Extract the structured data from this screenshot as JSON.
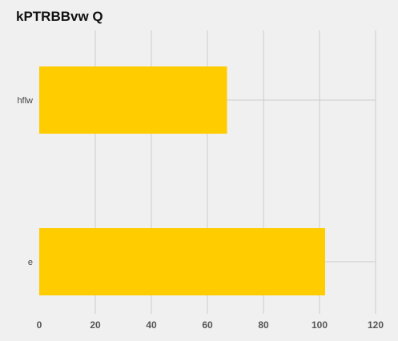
{
  "chart_data": {
    "type": "bar",
    "orientation": "horizontal",
    "title": "kPTRBBvw Q",
    "categories": [
      "hflw",
      "e"
    ],
    "values": [
      67,
      102
    ],
    "xlim": [
      0,
      120
    ],
    "xticks": [
      0,
      20,
      40,
      60,
      80,
      100,
      120
    ],
    "xlabel": "",
    "ylabel": "",
    "grid": true,
    "bar_color": "#ffcc00",
    "grid_color": "#cccccc",
    "background": "#f0f0f0"
  }
}
